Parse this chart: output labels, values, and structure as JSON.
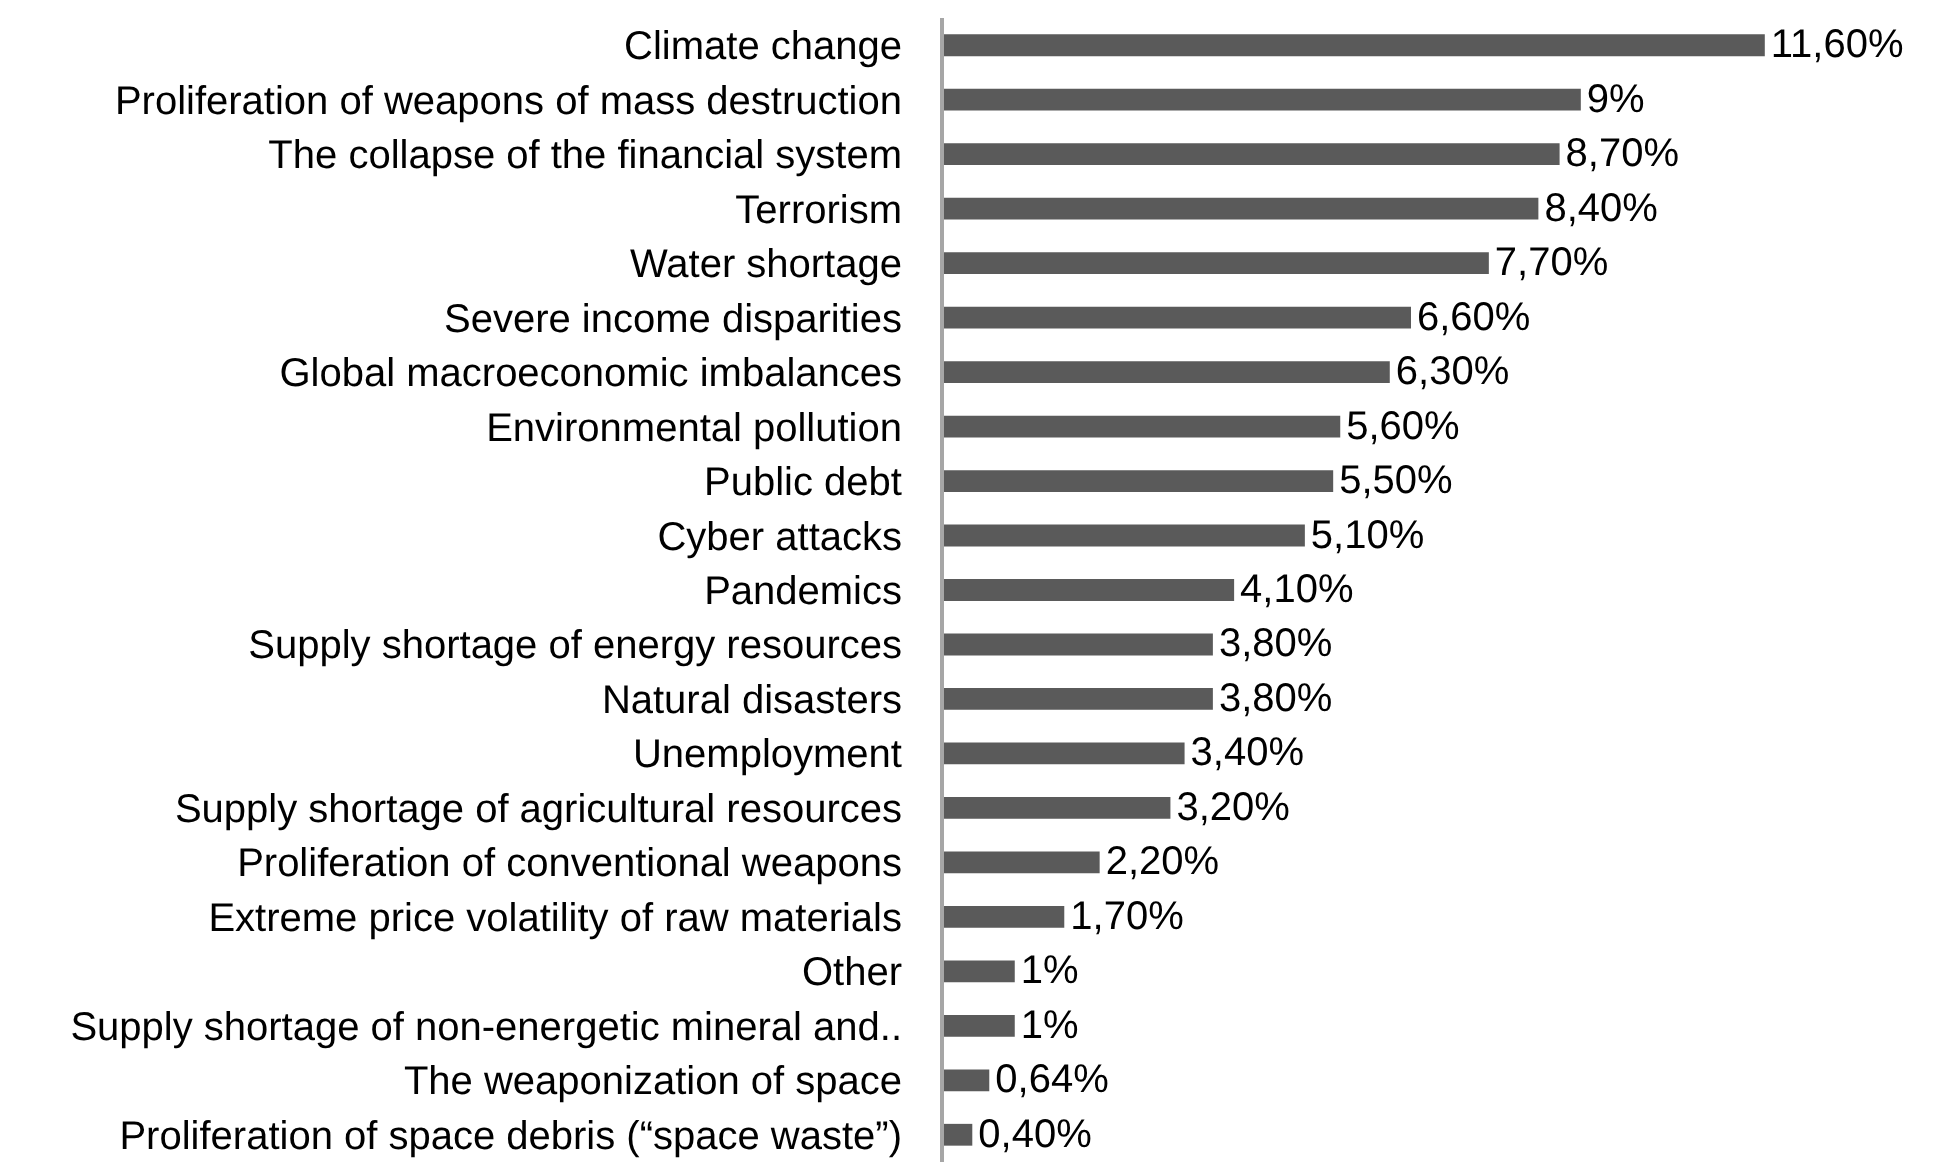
{
  "chart_data": {
    "type": "bar",
    "orientation": "horizontal",
    "categories": [
      "Climate change",
      "Proliferation of weapons of mass destruction",
      "The collapse of the financial system",
      "Terrorism",
      "Water shortage",
      "Severe income disparities",
      "Global macroeconomic imbalances",
      "Environmental pollution",
      "Public debt",
      "Cyber attacks",
      "Pandemics",
      "Supply shortage of energy resources",
      "Natural disasters",
      "Unemployment",
      "Supply shortage of agricultural resources",
      "Proliferation of conventional weapons",
      "Extreme price volatility of raw materials",
      "Other",
      "Supply shortage of non-energetic mineral and..",
      "The weaponization of space",
      "Proliferation of space debris (“space waste”)"
    ],
    "values": [
      11.6,
      9,
      8.7,
      8.4,
      7.7,
      6.6,
      6.3,
      5.6,
      5.5,
      5.1,
      4.1,
      3.8,
      3.8,
      3.4,
      3.2,
      2.2,
      1.7,
      1,
      1,
      0.64,
      0.4
    ],
    "value_labels": [
      "11,60%",
      "9%",
      "8,70%",
      "8,40%",
      "7,70%",
      "6,60%",
      "6,30%",
      "5,60%",
      "5,50%",
      "5,10%",
      "4,10%",
      "3,80%",
      "3,80%",
      "3,40%",
      "3,20%",
      "2,20%",
      "1,70%",
      "1%",
      "1%",
      "0,64%",
      "0,40%"
    ],
    "color": "#5a5a5a"
  }
}
